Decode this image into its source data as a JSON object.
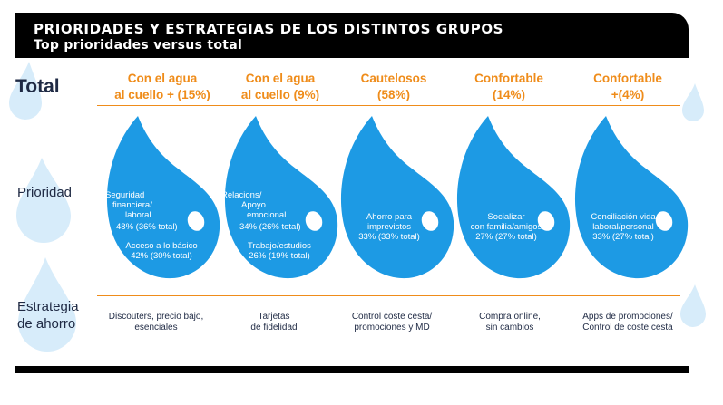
{
  "header": {
    "title": "PRIORIDADES Y ESTRATEGIAS DE LOS DISTINTOS GRUPOS",
    "subtitle": "Top prioridades versus total"
  },
  "rows": {
    "total": "Total",
    "prioridad": "Prioridad",
    "estrategia_line1": "Estrategia",
    "estrategia_line2": "de ahorro"
  },
  "colors": {
    "accent": "#ef8c1a",
    "drop": "#1d9ae4",
    "drop_light": "#d7ecfa",
    "text": "#1f2a44"
  },
  "groups": [
    {
      "head1": "Con el agua",
      "head2": "al cuello + (15%)",
      "p1": [
        "Seguridad",
        "financiera/",
        "laboral",
        "48% (36% total)"
      ],
      "p2": [
        "Acceso a lo básico",
        "42% (30% total)"
      ],
      "strategy": [
        "Discouters, precio bajo,",
        "esenciales"
      ]
    },
    {
      "head1": "Con el agua",
      "head2": "al cuello (9%)",
      "p1": [
        "Relacions/",
        "Apoyo",
        "emocional",
        "34% (26% total)"
      ],
      "p2": [
        "Trabajo/estudios",
        "26% (19% total)"
      ],
      "strategy": [
        "Tarjetas",
        "de fidelidad"
      ]
    },
    {
      "head1": "Cautelosos",
      "head2": "(58%)",
      "p1": [
        "Ahorro para",
        "imprevistos",
        "33% (33% total)"
      ],
      "strategy": [
        "Control coste cesta/",
        "promociones y MD"
      ]
    },
    {
      "head1": "Confortable",
      "head2": "(14%)",
      "p1": [
        "Socializar",
        "con familia/amigos",
        "27% (27% total)"
      ],
      "strategy": [
        "Compra online,",
        "sin cambios"
      ]
    },
    {
      "head1": "Confortable",
      "head2": "+(4%)",
      "p1": [
        "Conciliación vida",
        "laboral/personal",
        "33% (27% total)"
      ],
      "strategy": [
        "Apps de promociones/",
        "Control de coste cesta"
      ]
    }
  ]
}
